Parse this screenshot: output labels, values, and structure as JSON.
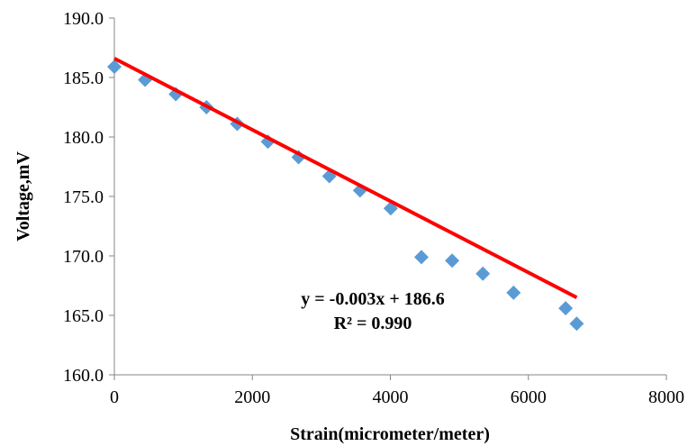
{
  "chart_data": {
    "type": "scatter",
    "xlabel": "Strain(micrometer/meter)",
    "ylabel": "Voltage,mV",
    "xlim": [
      0,
      8000
    ],
    "ylim": [
      160.0,
      190.0
    ],
    "x_ticks": [
      "0",
      "2000",
      "4000",
      "6000",
      "8000"
    ],
    "y_ticks": [
      "160.0",
      "165.0",
      "170.0",
      "175.0",
      "180.0",
      "185.0",
      "190.0"
    ],
    "grid": false,
    "legend": "none",
    "series": [
      {
        "marker": "diamond",
        "color": "#5B9BD5",
        "points": [
          {
            "x": 0,
            "y": 185.9
          },
          {
            "x": 445,
            "y": 184.8
          },
          {
            "x": 890,
            "y": 183.6
          },
          {
            "x": 1335,
            "y": 182.5
          },
          {
            "x": 1780,
            "y": 181.1
          },
          {
            "x": 2225,
            "y": 179.6
          },
          {
            "x": 2670,
            "y": 178.3
          },
          {
            "x": 3115,
            "y": 176.7
          },
          {
            "x": 3560,
            "y": 175.5
          },
          {
            "x": 4005,
            "y": 174.0
          },
          {
            "x": 4450,
            "y": 169.9
          },
          {
            "x": 4895,
            "y": 169.6
          },
          {
            "x": 5340,
            "y": 168.5
          },
          {
            "x": 5785,
            "y": 166.9
          },
          {
            "x": 6540,
            "y": 165.6
          },
          {
            "x": 6700,
            "y": 164.3
          }
        ]
      }
    ],
    "trendline": {
      "type": "linear",
      "color": "#FF0000",
      "slope": -0.003,
      "intercept": 186.6,
      "x_range": [
        0,
        6700
      ]
    },
    "annotation": {
      "equation": "y = -0.003x + 186.6",
      "r_squared": "R² = 0.990"
    }
  }
}
